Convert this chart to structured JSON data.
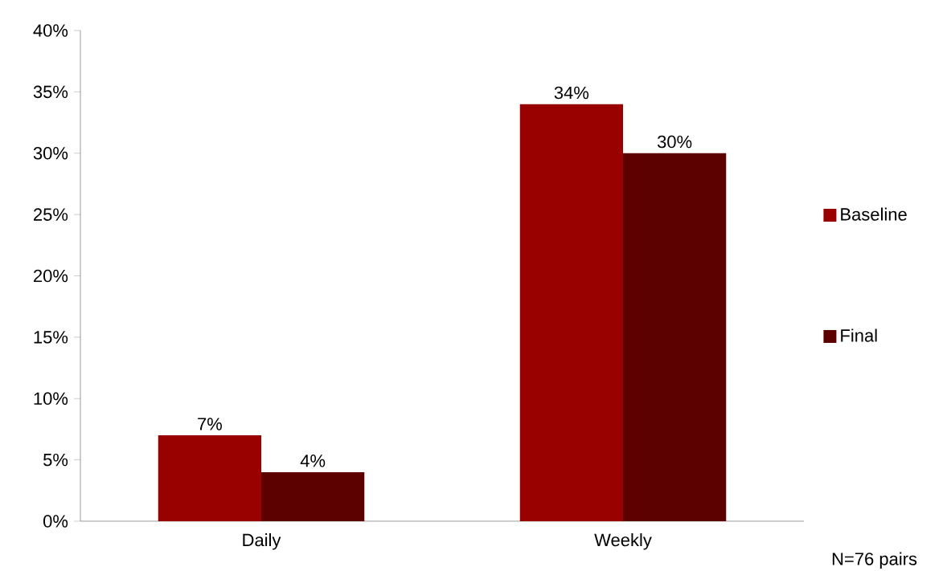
{
  "chart_data": {
    "type": "bar",
    "categories": [
      "Daily",
      "Weekly"
    ],
    "series": [
      {
        "name": "Baseline",
        "color": "#990000",
        "values": [
          7,
          34
        ],
        "value_labels": [
          "7%",
          "34%"
        ]
      },
      {
        "name": "Final",
        "color": "#5c0000",
        "values": [
          4,
          30
        ],
        "value_labels": [
          "4%",
          "30%"
        ]
      }
    ],
    "ylim": [
      0,
      40
    ],
    "yticks": [
      {
        "value": 0,
        "label": "0%"
      },
      {
        "value": 5,
        "label": "5%"
      },
      {
        "value": 10,
        "label": "10%"
      },
      {
        "value": 15,
        "label": "15%"
      },
      {
        "value": 20,
        "label": "20%"
      },
      {
        "value": 25,
        "label": "25%"
      },
      {
        "value": 30,
        "label": "30%"
      },
      {
        "value": 35,
        "label": "35%"
      },
      {
        "value": 40,
        "label": "40%"
      }
    ],
    "grid": false,
    "legend": "right",
    "annotations": [
      "N=76 pairs"
    ]
  }
}
